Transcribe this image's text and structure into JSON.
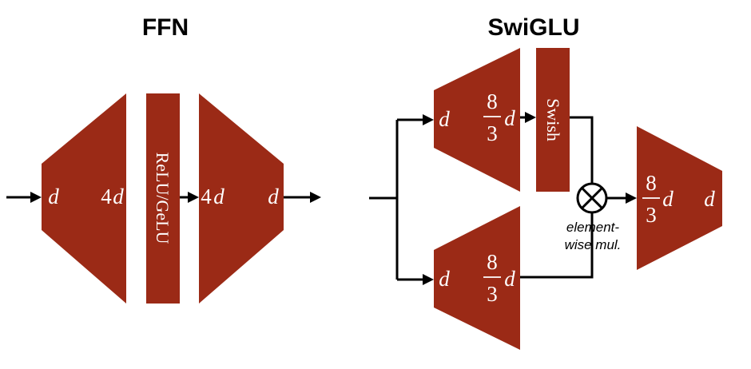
{
  "colors": {
    "block": "#9b2a16",
    "line": "#000000",
    "background": "#ffffff"
  },
  "ffn": {
    "title": "FFN",
    "in_label": "d",
    "up_out_coef": "4",
    "up_out_var": "d",
    "activation": "ReLU/GeLU",
    "down_in_coef": "4",
    "down_in_var": "d",
    "out_label": "d"
  },
  "swiglu": {
    "title": "SwiGLU",
    "gate_in": "d",
    "gate_frac_num": "8",
    "gate_frac_den": "3",
    "gate_frac_var": "d",
    "swish_label": "Swish",
    "value_in": "d",
    "value_frac_num": "8",
    "value_frac_den": "3",
    "value_frac_var": "d",
    "mul_label_1": "element-",
    "mul_label_2": "wise mul.",
    "down_frac_num": "8",
    "down_frac_den": "3",
    "down_frac_var": "d",
    "out_label": "d"
  }
}
